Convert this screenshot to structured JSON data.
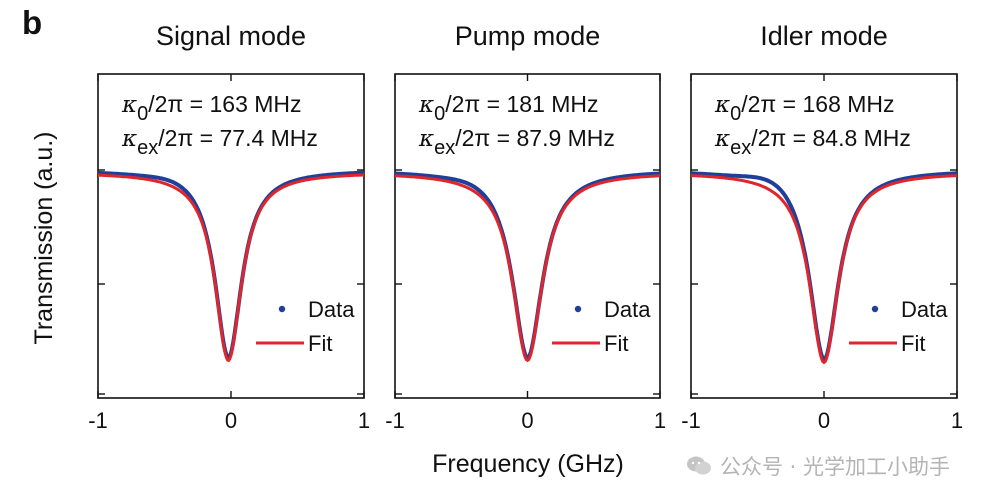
{
  "panel_letter": "b",
  "xlabel": "Frequency (GHz)",
  "ylabel": "Transmission (a.u.)",
  "watermark": {
    "text": "公众号 · 光学加工小助手"
  },
  "colors": {
    "data": "#1f3f9a",
    "fit": "#e0262b",
    "axis": "#111111"
  },
  "chart_data": [
    {
      "type": "line",
      "title": "Signal mode",
      "xlim": [
        -1,
        1
      ],
      "xticks": [
        "-1",
        "0",
        "1"
      ],
      "kappa0": {
        "symbol": "κ",
        "sub": "0",
        "rest": "/2π = 163 MHz"
      },
      "kappaex": {
        "symbol": "κ",
        "sub": "ex",
        "rest": "/2π = 77.4 MHz"
      },
      "legend": {
        "data": "Data",
        "fit": "Fit"
      },
      "dip_center_ghz": -0.02,
      "dip_width_ghz": 0.24,
      "dip_depth": 0.94,
      "series": [
        {
          "name": "Data",
          "x": [
            -1.0,
            -0.8,
            -0.6,
            -0.4,
            -0.3,
            -0.2,
            -0.1,
            -0.05,
            0.0,
            0.05,
            0.1,
            0.2,
            0.3,
            0.4,
            0.6,
            0.8,
            1.0
          ],
          "y": [
            0.99,
            0.985,
            0.96,
            0.9,
            0.82,
            0.66,
            0.35,
            0.13,
            0.06,
            0.14,
            0.38,
            0.68,
            0.83,
            0.9,
            0.96,
            0.985,
            0.995
          ]
        },
        {
          "name": "Fit",
          "x": [
            -1.0,
            -0.8,
            -0.6,
            -0.4,
            -0.3,
            -0.2,
            -0.1,
            -0.05,
            0.0,
            0.05,
            0.1,
            0.2,
            0.3,
            0.4,
            0.6,
            0.8,
            1.0
          ],
          "y": [
            0.98,
            0.97,
            0.95,
            0.88,
            0.8,
            0.64,
            0.33,
            0.12,
            0.06,
            0.14,
            0.36,
            0.67,
            0.82,
            0.89,
            0.95,
            0.98,
            0.99
          ]
        }
      ]
    },
    {
      "type": "line",
      "title": "Pump mode",
      "xlim": [
        -1,
        1
      ],
      "xticks": [
        "-1",
        "0",
        "1"
      ],
      "kappa0": {
        "symbol": "κ",
        "sub": "0",
        "rest": "/2π = 181 MHz"
      },
      "kappaex": {
        "symbol": "κ",
        "sub": "ex",
        "rest": "/2π = 87.9 MHz"
      },
      "legend": {
        "data": "Data",
        "fit": "Fit"
      },
      "dip_center_ghz": 0.0,
      "dip_width_ghz": 0.27,
      "dip_depth": 0.94,
      "series": [
        {
          "name": "Data",
          "x": [
            -1.0,
            -0.8,
            -0.6,
            -0.4,
            -0.3,
            -0.2,
            -0.1,
            -0.05,
            0.0,
            0.05,
            0.1,
            0.2,
            0.3,
            0.4,
            0.6,
            0.8,
            1.0
          ],
          "y": [
            0.99,
            0.985,
            0.96,
            0.9,
            0.8,
            0.63,
            0.33,
            0.13,
            0.06,
            0.14,
            0.37,
            0.68,
            0.84,
            0.91,
            0.965,
            0.985,
            0.995
          ]
        },
        {
          "name": "Fit",
          "x": [
            -1.0,
            -0.8,
            -0.6,
            -0.4,
            -0.3,
            -0.2,
            -0.1,
            -0.05,
            0.0,
            0.05,
            0.1,
            0.2,
            0.3,
            0.4,
            0.6,
            0.8,
            1.0
          ],
          "y": [
            0.98,
            0.97,
            0.94,
            0.86,
            0.77,
            0.6,
            0.31,
            0.12,
            0.06,
            0.13,
            0.35,
            0.66,
            0.82,
            0.9,
            0.95,
            0.98,
            0.99
          ]
        }
      ]
    },
    {
      "type": "line",
      "title": "Idler mode",
      "xlim": [
        -1,
        1
      ],
      "xticks": [
        "-1",
        "0",
        "1"
      ],
      "kappa0": {
        "symbol": "κ",
        "sub": "0",
        "rest": "/2π = 168 MHz"
      },
      "kappaex": {
        "symbol": "κ",
        "sub": "ex",
        "rest": "/2π = 84.8 MHz"
      },
      "legend": {
        "data": "Data",
        "fit": "Fit"
      },
      "dip_center_ghz": 0.0,
      "dip_width_ghz": 0.26,
      "dip_depth": 0.95,
      "series": [
        {
          "name": "Data",
          "x": [
            -1.0,
            -0.8,
            -0.6,
            -0.4,
            -0.3,
            -0.2,
            -0.1,
            -0.05,
            0.0,
            0.05,
            0.1,
            0.2,
            0.3,
            0.4,
            0.6,
            0.8,
            1.0
          ],
          "y": [
            0.99,
            0.985,
            0.97,
            0.93,
            0.86,
            0.7,
            0.36,
            0.14,
            0.05,
            0.14,
            0.37,
            0.67,
            0.83,
            0.9,
            0.96,
            0.985,
            0.995
          ]
        },
        {
          "name": "Fit",
          "x": [
            -1.0,
            -0.8,
            -0.6,
            -0.4,
            -0.3,
            -0.2,
            -0.1,
            -0.05,
            0.0,
            0.05,
            0.1,
            0.2,
            0.3,
            0.4,
            0.6,
            0.8,
            1.0
          ],
          "y": [
            0.98,
            0.97,
            0.95,
            0.88,
            0.8,
            0.63,
            0.33,
            0.12,
            0.05,
            0.13,
            0.35,
            0.66,
            0.82,
            0.9,
            0.95,
            0.98,
            0.99
          ]
        }
      ]
    }
  ]
}
